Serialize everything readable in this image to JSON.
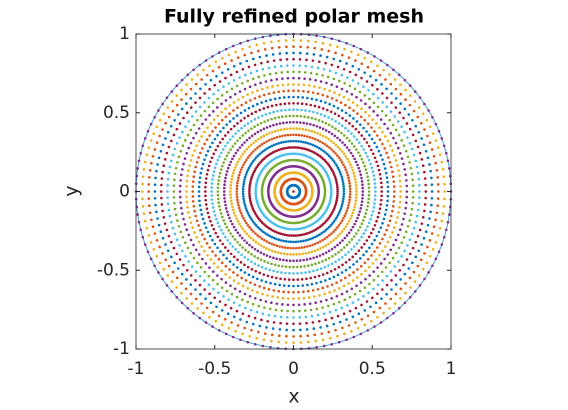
{
  "chart_data": {
    "type": "polar_mesh",
    "title": "Fully refined polar mesh",
    "x_label": "x",
    "y_label": "y",
    "xlim": [
      -1,
      1
    ],
    "ylim": [
      -1,
      1
    ],
    "xticks": [
      -1,
      -0.5,
      0,
      0.5,
      1
    ],
    "yticks": [
      -1,
      -0.5,
      0,
      0.5,
      1
    ],
    "boundary": {
      "r": 1,
      "color": "#4d9fd6"
    },
    "series": [
      {
        "r": 0,
        "n": 1,
        "color": "#A2142F"
      },
      {
        "r": 0.04,
        "n": 128,
        "color": "#0072BD"
      },
      {
        "r": 0.08,
        "n": 128,
        "color": "#D95319"
      },
      {
        "r": 0.12,
        "n": 128,
        "color": "#EDB120"
      },
      {
        "r": 0.16,
        "n": 128,
        "color": "#7E2F8E"
      },
      {
        "r": 0.2,
        "n": 128,
        "color": "#77AC30"
      },
      {
        "r": 0.24,
        "n": 128,
        "color": "#4DBEEE"
      },
      {
        "r": 0.28,
        "n": 128,
        "color": "#A2142F"
      },
      {
        "r": 0.32,
        "n": 128,
        "color": "#0072BD"
      },
      {
        "r": 0.36,
        "n": 128,
        "color": "#D95319"
      },
      {
        "r": 0.4,
        "n": 128,
        "color": "#EDB120"
      },
      {
        "r": 0.44,
        "n": 128,
        "color": "#7E2F8E"
      },
      {
        "r": 0.48,
        "n": 128,
        "color": "#77AC30"
      },
      {
        "r": 0.52,
        "n": 128,
        "color": "#4DBEEE"
      },
      {
        "r": 0.56,
        "n": 128,
        "color": "#A2142F"
      },
      {
        "r": 0.6,
        "n": 128,
        "color": "#0072BD"
      },
      {
        "r": 0.64,
        "n": 128,
        "color": "#D95319"
      },
      {
        "r": 0.68,
        "n": 128,
        "color": "#EDB120"
      },
      {
        "r": 0.72,
        "n": 128,
        "color": "#7E2F8E"
      },
      {
        "r": 0.76,
        "n": 128,
        "color": "#77AC30"
      },
      {
        "r": 0.8,
        "n": 128,
        "color": "#4DBEEE"
      },
      {
        "r": 0.84,
        "n": 128,
        "color": "#A2142F"
      },
      {
        "r": 0.88,
        "n": 128,
        "color": "#0072BD"
      },
      {
        "r": 0.92,
        "n": 128,
        "color": "#D95319"
      },
      {
        "r": 0.96,
        "n": 128,
        "color": "#EDB120"
      },
      {
        "r": 1,
        "n": 128,
        "color": "#7E2F8E"
      }
    ]
  }
}
